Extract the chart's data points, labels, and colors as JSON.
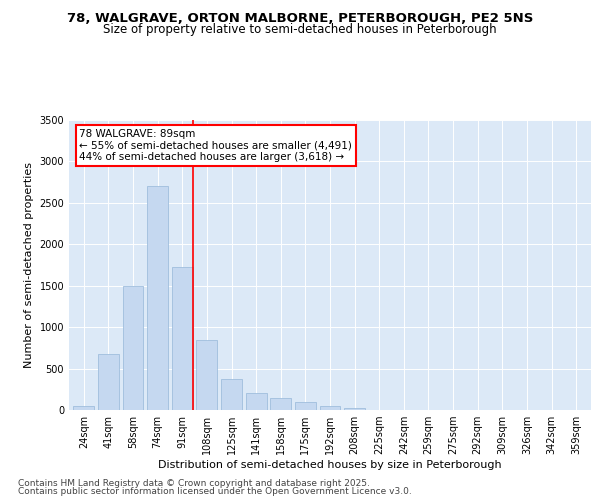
{
  "title1": "78, WALGRAVE, ORTON MALBORNE, PETERBOROUGH, PE2 5NS",
  "title2": "Size of property relative to semi-detached houses in Peterborough",
  "xlabel": "Distribution of semi-detached houses by size in Peterborough",
  "ylabel": "Number of semi-detached properties",
  "categories": [
    "24sqm",
    "41sqm",
    "58sqm",
    "74sqm",
    "91sqm",
    "108sqm",
    "125sqm",
    "141sqm",
    "158sqm",
    "175sqm",
    "192sqm",
    "208sqm",
    "225sqm",
    "242sqm",
    "259sqm",
    "275sqm",
    "292sqm",
    "309sqm",
    "326sqm",
    "342sqm",
    "359sqm"
  ],
  "values": [
    50,
    670,
    1500,
    2700,
    1720,
    850,
    370,
    200,
    150,
    100,
    50,
    20,
    5,
    5,
    3,
    1,
    1,
    1,
    0,
    0,
    0
  ],
  "bar_color": "#c5d8f0",
  "bar_edge_color": "#a0bedd",
  "property_line_bar_index": 4,
  "property_label": "78 WALGRAVE: 89sqm",
  "annotation_line1": "← 55% of semi-detached houses are smaller (4,491)",
  "annotation_line2": "44% of semi-detached houses are larger (3,618) →",
  "ylim": [
    0,
    3500
  ],
  "yticks": [
    0,
    500,
    1000,
    1500,
    2000,
    2500,
    3000,
    3500
  ],
  "footnote1": "Contains HM Land Registry data © Crown copyright and database right 2025.",
  "footnote2": "Contains public sector information licensed under the Open Government Licence v3.0.",
  "bg_color": "#dce9f7",
  "fig_bg_color": "#ffffff",
  "title_fontsize": 9.5,
  "subtitle_fontsize": 8.5,
  "axis_label_fontsize": 8,
  "tick_fontsize": 7,
  "annotation_fontsize": 7.5,
  "footnote_fontsize": 6.5
}
